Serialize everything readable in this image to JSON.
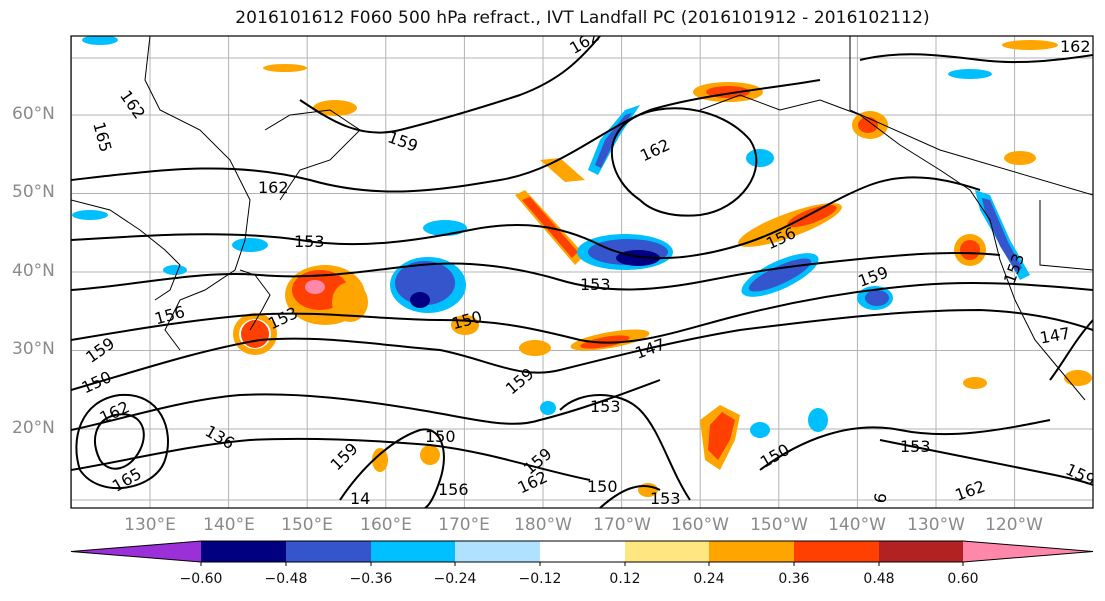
{
  "title": "2016101612 F060 500 hPa refract., IVT Landfall PC (2016101912 - 2016102112)",
  "lat_labels": [
    {
      "label": "60°N",
      "lat": 60
    },
    {
      "label": "50°N",
      "lat": 50
    },
    {
      "label": "40°N",
      "lat": 40
    },
    {
      "label": "30°N",
      "lat": 30
    },
    {
      "label": "20°N",
      "lat": 20
    }
  ],
  "lon_labels": [
    "130°E",
    "140°E",
    "150°E",
    "160°E",
    "170°E",
    "180°W",
    "170°W",
    "160°W",
    "150°W",
    "140°W",
    "130°W",
    "120°W"
  ],
  "contour_labels": [
    "162",
    "165",
    "162",
    "159",
    "162",
    "153",
    "153",
    "156",
    "159",
    "150",
    "162",
    "136",
    "159",
    "150",
    "14",
    "156",
    "162",
    "159",
    "150",
    "153",
    "147",
    "153",
    "159",
    "153",
    "150",
    "150",
    "162",
    "159",
    "147",
    "153",
    "159",
    "162",
    "156",
    "162",
    "153",
    "165",
    "6"
  ],
  "colorbar": {
    "ticks": [
      "−0.60",
      "−0.48",
      "−0.36",
      "−0.24",
      "−0.12",
      "0.12",
      "0.24",
      "0.36",
      "0.48",
      "0.60"
    ],
    "colors": [
      "#9b30d9",
      "#000080",
      "#3555cc",
      "#00bfff",
      "#b0e2ff",
      "#ffffff",
      "#ffe680",
      "#ffa500",
      "#ff4000",
      "#b22222",
      "#ff88aa"
    ]
  }
}
